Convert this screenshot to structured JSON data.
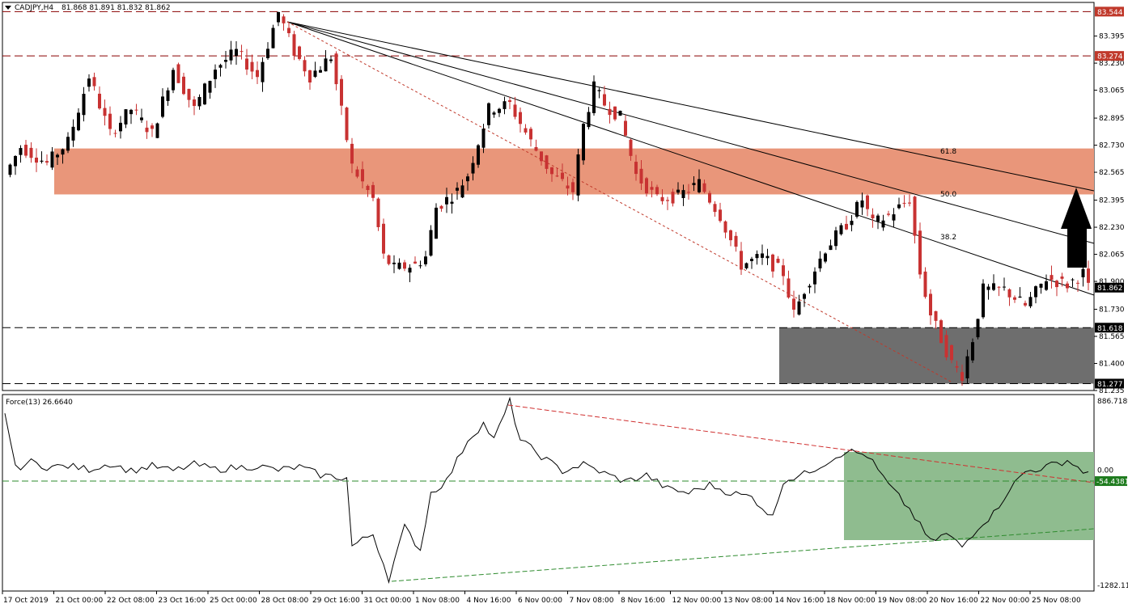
{
  "header": {
    "symbol": "CADJPY,H4",
    "ohlc": "81.868 81.891 81.832 81.862",
    "indicator": "Force(13) 26.6640"
  },
  "colors": {
    "bull": "#000000",
    "bear": "#c83232",
    "resistance_zone": "#e9967a",
    "support_zone": "#6e6e6e",
    "force_zone": "#8fbc8f",
    "level_line": "#8b0000",
    "tag_red": "#c0392b",
    "tag_black": "#000000",
    "tag_green": "#1e7b1e"
  },
  "chart_data": [
    {
      "type": "candlestick",
      "title": "",
      "ylim": [
        81.235,
        83.6
      ],
      "y_ticks": [
        "83.395",
        "83.230",
        "83.065",
        "82.895",
        "82.730",
        "82.565",
        "82.395",
        "82.230",
        "82.065",
        "81.900",
        "81.730",
        "81.565",
        "81.400",
        "81.235"
      ],
      "x_ticks": [
        "17 Oct 2019",
        "21 Oct 00:00",
        "22 Oct 08:00",
        "23 Oct 16:00",
        "25 Oct 00:00",
        "28 Oct 08:00",
        "29 Oct 16:00",
        "31 Oct 00:00",
        "1 Nov 08:00",
        "4 Nov 16:00",
        "6 Nov 00:00",
        "7 Nov 08:00",
        "8 Nov 16:00",
        "12 Nov 00:00",
        "13 Nov 08:00",
        "14 Nov 16:00",
        "18 Nov 00:00",
        "19 Nov 08:00",
        "20 Nov 16:00",
        "22 Nov 00:00",
        "25 Nov 08:00"
      ],
      "levels": [
        {
          "value": 83.544,
          "label": "83.544",
          "style": "red-dashed"
        },
        {
          "value": 83.274,
          "label": "83.274",
          "style": "red-dashed"
        },
        {
          "value": 81.618,
          "label": "81.618",
          "style": "black-dashed"
        },
        {
          "value": 81.277,
          "label": "81.277",
          "style": "black-dashed"
        }
      ],
      "current_price": "81.862",
      "resistance_zone": [
        82.43,
        82.71
      ],
      "support_zone": [
        81.277,
        81.618
      ],
      "fib_fan_labels": [
        "61.8",
        "50.0",
        "38.2"
      ],
      "annotation": "up-arrow",
      "anchors": [
        [
          0,
          82.55
        ],
        [
          3,
          82.72
        ],
        [
          8,
          82.62
        ],
        [
          12,
          82.75
        ],
        [
          16,
          83.15
        ],
        [
          20,
          82.8
        ],
        [
          24,
          82.95
        ],
        [
          28,
          82.8
        ],
        [
          32,
          83.2
        ],
        [
          36,
          82.95
        ],
        [
          40,
          83.2
        ],
        [
          44,
          83.3
        ],
        [
          48,
          83.15
        ],
        [
          52,
          83.54
        ],
        [
          55,
          83.3
        ],
        [
          58,
          83.15
        ],
        [
          62,
          83.27
        ],
        [
          66,
          82.6
        ],
        [
          70,
          82.4
        ],
        [
          72,
          82.05
        ],
        [
          74,
          81.98
        ],
        [
          78,
          82.0
        ],
        [
          80,
          82.05
        ],
        [
          82,
          82.35
        ],
        [
          86,
          82.45
        ],
        [
          88,
          82.55
        ],
        [
          92,
          82.95
        ],
        [
          96,
          82.98
        ],
        [
          100,
          82.75
        ],
        [
          104,
          82.55
        ],
        [
          108,
          82.45
        ],
        [
          110,
          82.85
        ],
        [
          112,
          83.08
        ],
        [
          114,
          82.98
        ],
        [
          117,
          82.9
        ],
        [
          120,
          82.55
        ],
        [
          124,
          82.4
        ],
        [
          128,
          82.42
        ],
        [
          132,
          82.5
        ],
        [
          136,
          82.3
        ],
        [
          140,
          82.0
        ],
        [
          144,
          82.05
        ],
        [
          148,
          81.95
        ],
        [
          150,
          81.7
        ],
        [
          152,
          81.85
        ],
        [
          156,
          82.1
        ],
        [
          160,
          82.25
        ],
        [
          163,
          82.4
        ],
        [
          165,
          82.25
        ],
        [
          168,
          82.3
        ],
        [
          172,
          82.4
        ],
        [
          174,
          81.95
        ],
        [
          176,
          81.7
        ],
        [
          178,
          81.55
        ],
        [
          180,
          81.4
        ],
        [
          182,
          81.33
        ],
        [
          184,
          81.55
        ],
        [
          186,
          81.85
        ],
        [
          190,
          81.85
        ],
        [
          194,
          81.75
        ],
        [
          198,
          81.92
        ],
        [
          202,
          81.88
        ],
        [
          205,
          81.95
        ],
        [
          206,
          81.86
        ]
      ],
      "force_ylim": [
        -1282.1,
        886.7189
      ],
      "force_ticks": [
        "886.7189",
        "0.00",
        "-54.4381",
        "-1282.1101"
      ],
      "force_label": "-54.4381",
      "force_zone_x": [
        160,
        206
      ],
      "force_anchors": [
        [
          0,
          800
        ],
        [
          2,
          100
        ],
        [
          5,
          180
        ],
        [
          8,
          120
        ],
        [
          12,
          130
        ],
        [
          16,
          90
        ],
        [
          20,
          160
        ],
        [
          24,
          70
        ],
        [
          28,
          130
        ],
        [
          32,
          70
        ],
        [
          36,
          150
        ],
        [
          40,
          90
        ],
        [
          44,
          110
        ],
        [
          48,
          130
        ],
        [
          52,
          80
        ],
        [
          56,
          120
        ],
        [
          60,
          20
        ],
        [
          65,
          -20
        ],
        [
          66,
          -850
        ],
        [
          70,
          -700
        ],
        [
          73,
          -1250
        ],
        [
          76,
          -620
        ],
        [
          79,
          -900
        ],
        [
          81,
          -200
        ],
        [
          84,
          -50
        ],
        [
          88,
          450
        ],
        [
          91,
          650
        ],
        [
          93,
          450
        ],
        [
          96,
          920
        ],
        [
          98,
          450
        ],
        [
          102,
          250
        ],
        [
          106,
          70
        ],
        [
          110,
          150
        ],
        [
          114,
          40
        ],
        [
          118,
          -60
        ],
        [
          122,
          20
        ],
        [
          126,
          -150
        ],
        [
          130,
          -200
        ],
        [
          134,
          -100
        ],
        [
          138,
          -200
        ],
        [
          142,
          -250
        ],
        [
          146,
          -500
        ],
        [
          148,
          -50
        ],
        [
          152,
          30
        ],
        [
          156,
          170
        ],
        [
          160,
          320
        ],
        [
          164,
          260
        ],
        [
          168,
          -100
        ],
        [
          172,
          -400
        ],
        [
          176,
          -800
        ],
        [
          179,
          -700
        ],
        [
          182,
          -860
        ],
        [
          185,
          -620
        ],
        [
          188,
          -450
        ],
        [
          191,
          -150
        ],
        [
          194,
          60
        ],
        [
          198,
          120
        ],
        [
          202,
          200
        ],
        [
          205,
          70
        ],
        [
          206,
          60
        ]
      ]
    }
  ]
}
